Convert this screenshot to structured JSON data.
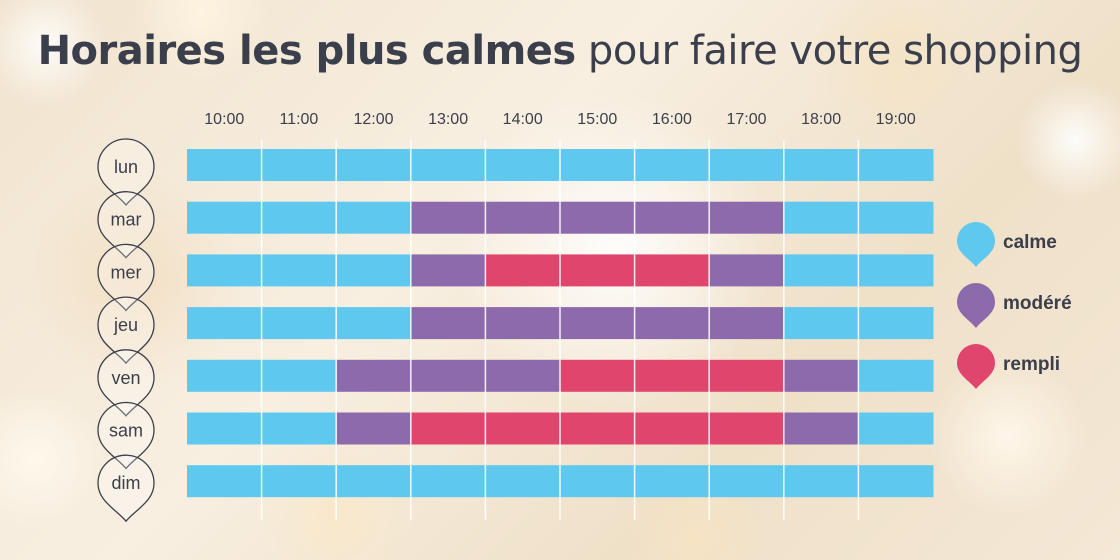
{
  "title": {
    "bold": "Horaires les plus calmes",
    "light": "pour faire votre shopping"
  },
  "chart_data": {
    "type": "heatmap",
    "x_ticks": [
      "10:00",
      "11:00",
      "12:00",
      "13:00",
      "14:00",
      "15:00",
      "16:00",
      "17:00",
      "18:00",
      "19:00"
    ],
    "rows": [
      "lun",
      "mar",
      "mer",
      "jeu",
      "ven",
      "sam",
      "dim"
    ],
    "levels": [
      "calme",
      "modéré",
      "rempli"
    ],
    "colors": {
      "calme": "#5ec8ef",
      "modéré": "#8d6aab",
      "rempli": "#e0456e"
    },
    "values": [
      [
        0,
        0,
        0,
        0,
        0,
        0,
        0,
        0,
        0,
        0
      ],
      [
        0,
        0,
        0,
        1,
        1,
        1,
        1,
        1,
        0,
        0
      ],
      [
        0,
        0,
        0,
        1,
        2,
        2,
        2,
        1,
        0,
        0
      ],
      [
        0,
        0,
        0,
        1,
        1,
        1,
        1,
        1,
        0,
        0
      ],
      [
        0,
        0,
        1,
        1,
        1,
        2,
        2,
        2,
        1,
        0
      ],
      [
        0,
        0,
        1,
        2,
        2,
        2,
        2,
        2,
        1,
        0
      ],
      [
        0,
        0,
        0,
        0,
        0,
        0,
        0,
        0,
        0,
        0
      ]
    ],
    "legend": [
      {
        "label": "calme",
        "level": 0
      },
      {
        "label": "modéré",
        "level": 1
      },
      {
        "label": "rempli",
        "level": 2
      }
    ],
    "legend_position": "right"
  }
}
